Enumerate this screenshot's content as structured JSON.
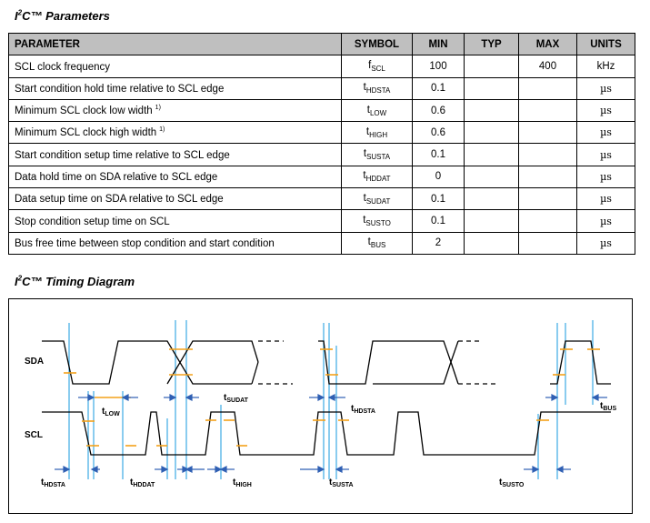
{
  "params_heading": {
    "prefix": "I",
    "sup": "2",
    "rest": "C™ Parameters"
  },
  "timing_heading": {
    "prefix": "I",
    "sup": "2",
    "rest": "C™ Timing Diagram"
  },
  "table": {
    "headers": {
      "parameter": "PARAMETER",
      "symbol": "SYMBOL",
      "min": "MIN",
      "typ": "TYP",
      "max": "MAX",
      "units": "UNITS"
    },
    "rows": [
      {
        "parameter": "SCL clock frequency",
        "note": "",
        "sym": "f",
        "sym_sub": "SCL",
        "min": "100",
        "typ": "",
        "max": "400",
        "units": "kHz"
      },
      {
        "parameter": "Start condition hold time relative to SCL edge",
        "note": "",
        "sym": "t",
        "sym_sub": "HDSTA",
        "min": "0.1",
        "typ": "",
        "max": "",
        "units": "µs"
      },
      {
        "parameter": "Minimum SCL clock low width",
        "note": "1)",
        "sym": "t",
        "sym_sub": "LOW",
        "min": "0.6",
        "typ": "",
        "max": "",
        "units": "µs"
      },
      {
        "parameter": "Minimum SCL clock high width",
        "note": "1)",
        "sym": "t",
        "sym_sub": "HIGH",
        "min": "0.6",
        "typ": "",
        "max": "",
        "units": "µs"
      },
      {
        "parameter": "Start condition setup time relative to SCL edge",
        "note": "",
        "sym": "t",
        "sym_sub": "SUSTA",
        "min": "0.1",
        "typ": "",
        "max": "",
        "units": "µs"
      },
      {
        "parameter": "Data hold time on SDA relative to SCL edge",
        "note": "",
        "sym": "t",
        "sym_sub": "HDDAT",
        "min": "0",
        "typ": "",
        "max": "",
        "units": "µs"
      },
      {
        "parameter": "Data setup time on SDA relative to SCL edge",
        "note": "",
        "sym": "t",
        "sym_sub": "SUDAT",
        "min": "0.1",
        "typ": "",
        "max": "",
        "units": "µs"
      },
      {
        "parameter": "Stop condition setup time on SCL",
        "note": "",
        "sym": "t",
        "sym_sub": "SUSTO",
        "min": "0.1",
        "typ": "",
        "max": "",
        "units": "µs"
      },
      {
        "parameter": "Bus free time between stop condition and start condition",
        "note": "",
        "sym": "t",
        "sym_sub": "BUS",
        "min": "2",
        "typ": "",
        "max": "",
        "units": "µs"
      }
    ]
  },
  "diagram": {
    "signals": {
      "sda": "SDA",
      "scl": "SCL"
    },
    "labels": {
      "t_low": {
        "t": "t",
        "sub": "LOW"
      },
      "t_sudat": {
        "t": "t",
        "sub": "SUDAT"
      },
      "t_hdsta_top": {
        "t": "t",
        "sub": "HDSTA"
      },
      "t_bus": {
        "t": "t",
        "sub": "BUS"
      },
      "t_hdsta_bottom": {
        "t": "t",
        "sub": "HDSTA"
      },
      "t_hddat": {
        "t": "t",
        "sub": "HDDAT"
      },
      "t_high": {
        "t": "t",
        "sub": "HIGH"
      },
      "t_susta": {
        "t": "t",
        "sub": "SUSTA"
      },
      "t_susto": {
        "t": "t",
        "sub": "SUSTO"
      }
    },
    "colors": {
      "marker_line": "#4ab0e6",
      "tick": "#f4a21a",
      "arrow": "#2f5fb3",
      "trace": "#000000"
    }
  }
}
